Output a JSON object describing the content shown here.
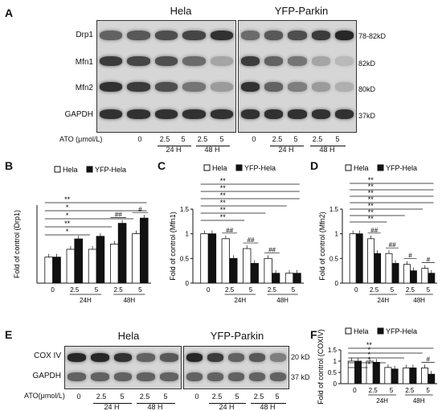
{
  "panel_a": {
    "label": "A",
    "groups": [
      "Hela",
      "YFP-Parkin"
    ],
    "rows": [
      {
        "name": "Drp1",
        "mw": "78-82kD"
      },
      {
        "name": "Mfn1",
        "mw": "82kD"
      },
      {
        "name": "Mfn2",
        "mw": "80kD"
      },
      {
        "name": "GAPDH",
        "mw": "37kD"
      }
    ],
    "dose_label": "ATO (μmol/L)",
    "doses": [
      "0",
      "2.5",
      "5",
      "2.5",
      "5"
    ],
    "times": [
      "24 H",
      "48 H"
    ]
  },
  "panel_e": {
    "label": "E",
    "groups": [
      "Hela",
      "YFP-Parkin"
    ],
    "rows": [
      {
        "name": "COX IV",
        "mw": "20 kD"
      },
      {
        "name": "GAPDH",
        "mw": "37 kD"
      }
    ],
    "dose_label": "ATO(μmol/L)",
    "doses": [
      "0",
      "2.5",
      "5",
      "2.5",
      "5"
    ],
    "times": [
      "24 H",
      "48 H"
    ]
  },
  "legend": {
    "hela": "Hela",
    "yfp": "YFP-Hela"
  },
  "colors": {
    "hela": "#ffffff",
    "yfp": "#111111"
  },
  "chart_data": [
    {
      "panel": "B",
      "type": "bar",
      "ylabel": "Fold of control (Drp1)",
      "ylim": [
        0,
        3
      ],
      "yticks": [],
      "categories": [
        "0",
        "2.5",
        "5",
        "2.5",
        "5"
      ],
      "time_labels": [
        "24H",
        "48H"
      ],
      "series": [
        {
          "name": "Hela",
          "values": [
            1.0,
            1.3,
            1.3,
            1.5,
            1.9
          ]
        },
        {
          "name": "YFP-Hela",
          "values": [
            1.0,
            1.7,
            1.8,
            2.3,
            2.5
          ]
        }
      ],
      "sig": [
        {
          "text": "**",
          "level": 6
        },
        {
          "text": "*",
          "level": 5
        },
        {
          "text": "*",
          "level": 4
        },
        {
          "text": "**",
          "level": 3
        },
        {
          "text": "*",
          "level": 2
        }
      ],
      "pair_sig": [
        "",
        "",
        "",
        "##",
        "#"
      ]
    },
    {
      "panel": "C",
      "type": "bar",
      "ylabel": "Fold of control (Mfn1)",
      "ylim": [
        0,
        1.5
      ],
      "yticks": [
        "0",
        "0.5",
        "1",
        "1.5"
      ],
      "categories": [
        "0",
        "2.5",
        "5",
        "2.5",
        "5"
      ],
      "time_labels": [
        "24H",
        "48H"
      ],
      "series": [
        {
          "name": "Hela",
          "values": [
            1.0,
            0.9,
            0.7,
            0.5,
            0.2
          ]
        },
        {
          "name": "YFP-Hela",
          "values": [
            1.0,
            0.5,
            0.4,
            0.2,
            0.2
          ]
        }
      ],
      "sig": [
        {
          "text": "**",
          "level": 7
        },
        {
          "text": "**",
          "level": 6
        },
        {
          "text": "**",
          "level": 5
        },
        {
          "text": "**",
          "level": 4
        },
        {
          "text": "**",
          "level": 3
        },
        {
          "text": "**",
          "level": 2
        }
      ],
      "pair_sig": [
        "",
        "##",
        "##",
        "##",
        ""
      ]
    },
    {
      "panel": "D",
      "type": "bar",
      "ylabel": "Fold of control (Mfn2)",
      "ylim": [
        0,
        1.5
      ],
      "yticks": [
        "0",
        "0.5",
        "1",
        "1.5"
      ],
      "categories": [
        "0",
        "2.5",
        "5",
        "2.5",
        "5"
      ],
      "time_labels": [
        "24H",
        "48H"
      ],
      "series": [
        {
          "name": "Hela",
          "values": [
            1.0,
            0.9,
            0.6,
            0.38,
            0.3
          ]
        },
        {
          "name": "YFP-Hela",
          "values": [
            1.0,
            0.6,
            0.4,
            0.25,
            0.2
          ]
        }
      ],
      "sig": [
        {
          "text": "**",
          "level": 8
        },
        {
          "text": "**",
          "level": 7
        },
        {
          "text": "**",
          "level": 6
        },
        {
          "text": "**",
          "level": 5
        },
        {
          "text": "**",
          "level": 4
        },
        {
          "text": "**",
          "level": 3
        },
        {
          "text": "**",
          "level": 2
        }
      ],
      "pair_sig": [
        "",
        "##",
        "##",
        "#",
        "#"
      ]
    },
    {
      "panel": "F",
      "type": "bar",
      "ylabel": "Fold of control (COXIV)",
      "ylim": [
        0,
        1.5
      ],
      "yticks": [
        "0",
        "0.5",
        "1",
        "1.5"
      ],
      "categories": [
        "0",
        "2.5",
        "5",
        "2.5",
        "5"
      ],
      "time_labels": [
        "24H",
        "48H"
      ],
      "series": [
        {
          "name": "Hela",
          "values": [
            1.0,
            1.0,
            0.72,
            0.7,
            0.7
          ]
        },
        {
          "name": "YFP-Hela",
          "values": [
            1.0,
            0.95,
            0.65,
            0.7,
            0.42
          ]
        }
      ],
      "sig": [
        {
          "text": "**",
          "level": 5
        },
        {
          "text": "*",
          "level": 4
        },
        {
          "text": "*",
          "level": 3
        },
        {
          "text": "*",
          "level": 2
        },
        {
          "text": "*",
          "level": 1
        }
      ],
      "pair_sig": [
        "",
        "",
        "",
        "",
        "#"
      ]
    }
  ]
}
